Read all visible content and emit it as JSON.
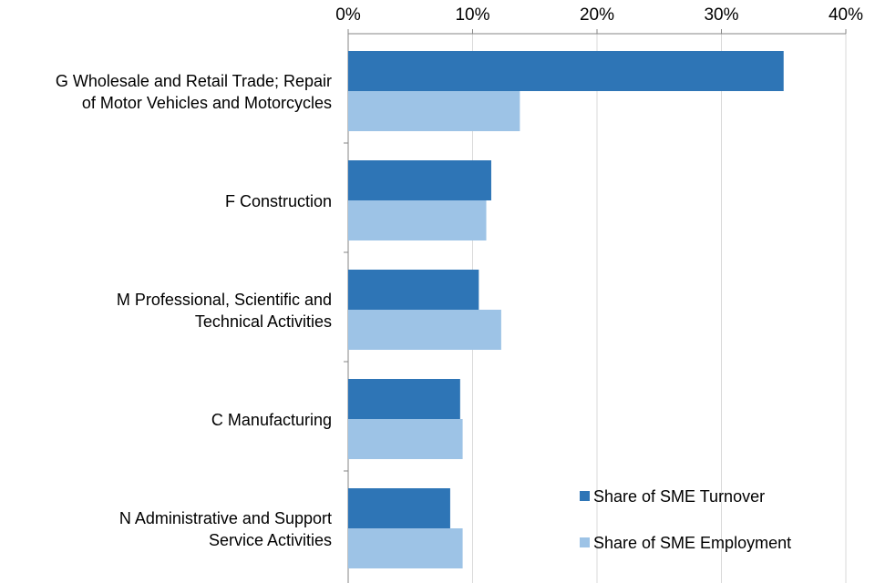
{
  "chart_data": {
    "type": "bar",
    "orientation": "horizontal",
    "categories": [
      [
        "G Wholesale and Retail Trade; Repair",
        "of Motor Vehicles and Motorcycles"
      ],
      [
        "F Construction"
      ],
      [
        "M Professional, Scientific and",
        "Technical Activities"
      ],
      [
        "C Manufacturing"
      ],
      [
        "N Administrative and Support",
        "Service Activities"
      ]
    ],
    "series": [
      {
        "name": "Share of SME Turnover",
        "color": "#2E75B6",
        "values": [
          35.0,
          11.5,
          10.5,
          9.0,
          8.2
        ]
      },
      {
        "name": "Share of SME Employment",
        "color": "#9DC3E6",
        "values": [
          13.8,
          11.1,
          12.3,
          9.2,
          9.2
        ]
      }
    ],
    "xlim": [
      0,
      40
    ],
    "xticks": [
      "0%",
      "10%",
      "20%",
      "30%",
      "40%"
    ],
    "x_axis_position": "top",
    "grid": true,
    "legend_position": "bottom-right",
    "title": "",
    "xlabel": "",
    "ylabel": ""
  }
}
